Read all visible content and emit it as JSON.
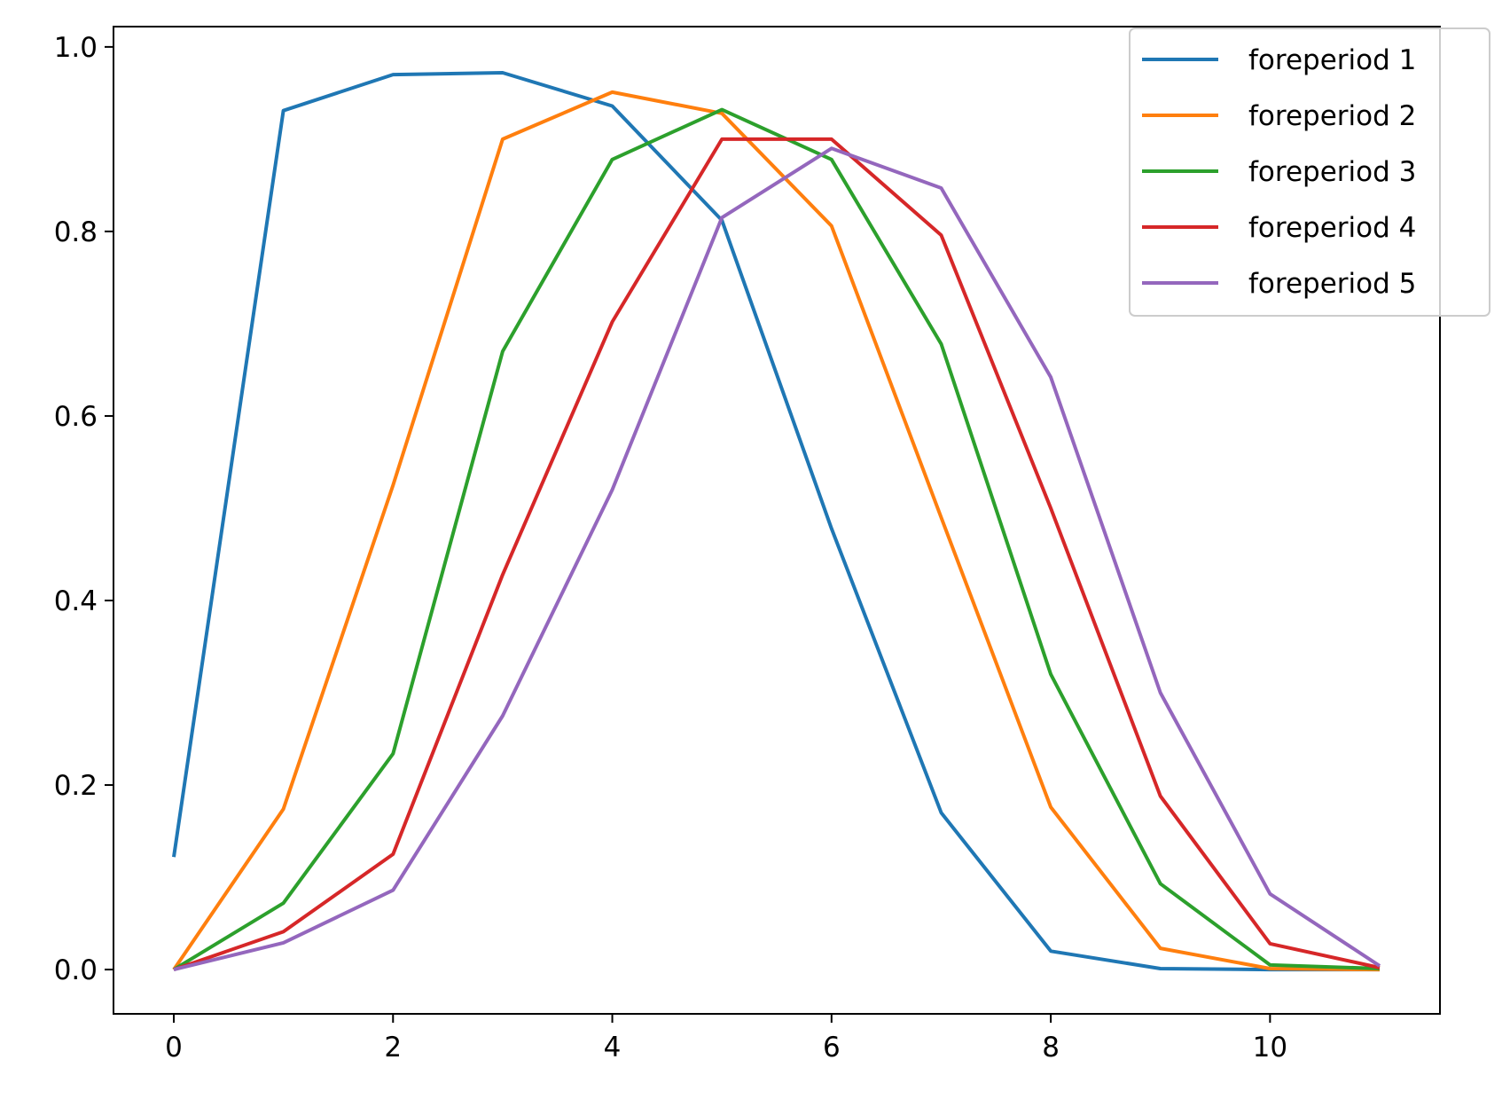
{
  "chart_data": {
    "type": "line",
    "title": "",
    "xlabel": "",
    "ylabel": "",
    "xlim": [
      -0.55,
      11.55
    ],
    "ylim": [
      -0.048,
      1.022
    ],
    "xticks": [
      0,
      2,
      4,
      6,
      8,
      10
    ],
    "yticks": [
      0.0,
      0.2,
      0.4,
      0.6,
      0.8,
      1.0
    ],
    "xtick_labels": [
      "0",
      "2",
      "4",
      "6",
      "8",
      "10"
    ],
    "ytick_labels": [
      "0.0",
      "0.2",
      "0.4",
      "0.6",
      "0.8",
      "1.0"
    ],
    "grid": false,
    "legend_position": "upper right",
    "x": [
      0,
      1,
      2,
      3,
      4,
      5,
      6,
      7,
      8,
      9,
      10,
      11
    ],
    "series": [
      {
        "name": "foreperiod 1",
        "color": "#1f77b4",
        "values": [
          0.122,
          0.931,
          0.97,
          0.972,
          0.936,
          0.812,
          0.478,
          0.17,
          0.02,
          0.001,
          0.0,
          0.0
        ]
      },
      {
        "name": "foreperiod 2",
        "color": "#ff7f0e",
        "values": [
          0.0,
          0.174,
          0.525,
          0.9,
          0.951,
          0.928,
          0.806,
          0.49,
          0.176,
          0.023,
          0.001,
          0.0
        ]
      },
      {
        "name": "foreperiod 3",
        "color": "#2ca02c",
        "values": [
          0.0,
          0.072,
          0.234,
          0.67,
          0.878,
          0.932,
          0.878,
          0.678,
          0.32,
          0.093,
          0.005,
          0.001
        ]
      },
      {
        "name": "foreperiod 4",
        "color": "#d62728",
        "values": [
          0.0,
          0.041,
          0.125,
          0.428,
          0.702,
          0.9,
          0.9,
          0.796,
          0.5,
          0.188,
          0.028,
          0.002
        ]
      },
      {
        "name": "foreperiod 5",
        "color": "#9467bd",
        "values": [
          0.0,
          0.029,
          0.086,
          0.275,
          0.52,
          0.815,
          0.89,
          0.847,
          0.642,
          0.3,
          0.082,
          0.004
        ]
      }
    ]
  }
}
